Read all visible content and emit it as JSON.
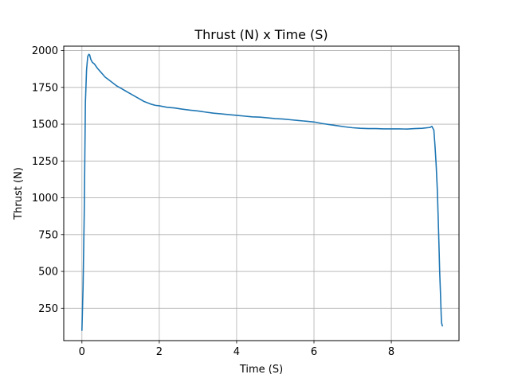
{
  "chart_data": {
    "type": "line",
    "title": "Thrust (N) x Time (S)",
    "xlabel": "Time (S)",
    "ylabel": "Thrust (N)",
    "xlim": [
      -0.47,
      9.75
    ],
    "ylim": [
      30,
      2030
    ],
    "x_ticks": [
      0,
      2,
      4,
      6,
      8
    ],
    "x_tick_labels": [
      "0",
      "2",
      "4",
      "6",
      "8"
    ],
    "y_ticks": [
      250,
      500,
      750,
      1000,
      1250,
      1500,
      1750,
      2000
    ],
    "y_tick_labels": [
      "250",
      "500",
      "750",
      "1000",
      "1250",
      "1500",
      "1750",
      "2000"
    ],
    "grid": true,
    "legend": "none",
    "series": [
      {
        "color": "#1f77b4",
        "x": [
          0.0,
          0.03,
          0.06,
          0.09,
          0.12,
          0.15,
          0.18,
          0.2,
          0.23,
          0.27,
          0.32,
          0.4,
          0.5,
          0.6,
          0.7,
          0.8,
          0.9,
          1.0,
          1.1,
          1.2,
          1.3,
          1.4,
          1.5,
          1.6,
          1.7,
          1.8,
          1.9,
          2.0,
          2.2,
          2.4,
          2.6,
          2.8,
          3.0,
          3.2,
          3.4,
          3.6,
          3.8,
          4.0,
          4.2,
          4.4,
          4.6,
          4.8,
          5.0,
          5.2,
          5.4,
          5.6,
          5.8,
          6.0,
          6.2,
          6.4,
          6.6,
          6.8,
          7.0,
          7.2,
          7.4,
          7.6,
          7.8,
          8.0,
          8.2,
          8.4,
          8.6,
          8.8,
          9.0,
          9.05,
          9.1,
          9.13,
          9.16,
          9.19,
          9.21,
          9.23,
          9.25,
          9.27,
          9.28,
          9.29,
          9.3,
          9.32
        ],
        "y": [
          100,
          400,
          900,
          1650,
          1870,
          1960,
          1975,
          1970,
          1940,
          1920,
          1910,
          1880,
          1850,
          1820,
          1800,
          1780,
          1760,
          1745,
          1730,
          1715,
          1700,
          1685,
          1670,
          1655,
          1645,
          1635,
          1628,
          1625,
          1615,
          1610,
          1602,
          1595,
          1590,
          1582,
          1575,
          1570,
          1565,
          1560,
          1555,
          1550,
          1548,
          1543,
          1538,
          1535,
          1530,
          1525,
          1520,
          1515,
          1505,
          1497,
          1490,
          1482,
          1476,
          1472,
          1470,
          1470,
          1468,
          1468,
          1468,
          1467,
          1470,
          1472,
          1478,
          1485,
          1460,
          1350,
          1220,
          1050,
          880,
          700,
          500,
          360,
          280,
          200,
          150,
          130
        ]
      }
    ]
  }
}
